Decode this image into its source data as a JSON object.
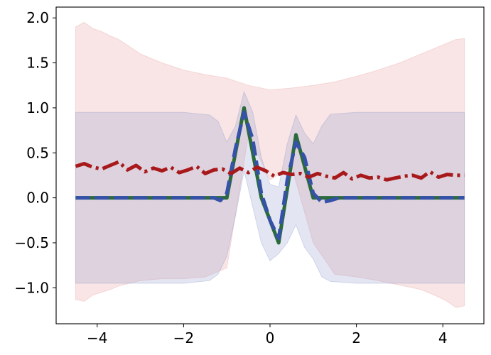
{
  "chart_data": {
    "type": "line",
    "title": "",
    "xlabel": "",
    "ylabel": "",
    "xlim": [
      -4.95,
      4.95
    ],
    "ylim": [
      -1.4,
      2.12
    ],
    "grid": false,
    "legend": "none",
    "x_ticks": [
      -4,
      -2,
      0,
      2,
      4
    ],
    "x_tick_labels": [
      "−4",
      "−2",
      "0",
      "2",
      "4"
    ],
    "y_ticks": [
      -1.0,
      -0.5,
      0.0,
      0.5,
      1.0,
      1.5,
      2.0
    ],
    "y_tick_labels": [
      "−1.0",
      "−0.5",
      "0.0",
      "0.5",
      "1.0",
      "1.5",
      "2.0"
    ],
    "bands": [
      {
        "color": "#e8a2a2",
        "opacity": 0.28,
        "x": [
          -4.5,
          -4.3,
          -4.1,
          -3.9,
          -3.7,
          -3.5,
          -3.0,
          -2.5,
          -2.0,
          -1.5,
          -1.0,
          -0.5,
          0.0,
          0.5,
          1.0,
          1.5,
          2.0,
          2.5,
          3.0,
          3.5,
          3.8,
          4.1,
          4.3,
          4.5
        ],
        "upper": [
          1.9,
          1.95,
          1.88,
          1.85,
          1.8,
          1.76,
          1.6,
          1.5,
          1.42,
          1.37,
          1.33,
          1.25,
          1.2,
          1.22,
          1.25,
          1.29,
          1.35,
          1.42,
          1.5,
          1.6,
          1.66,
          1.72,
          1.76,
          1.77
        ],
        "lower": [
          -1.13,
          -1.15,
          -1.08,
          -1.05,
          -1.02,
          -0.98,
          -0.92,
          -0.9,
          -0.9,
          -0.88,
          -0.78,
          0.7,
          0.2,
          0.35,
          -0.5,
          -0.85,
          -0.88,
          -0.92,
          -0.97,
          -1.02,
          -1.08,
          -1.15,
          -1.22,
          -1.2
        ]
      },
      {
        "color": "#8f9ccc",
        "opacity": 0.25,
        "x": [
          -4.5,
          -2.0,
          -1.4,
          -1.2,
          -1.0,
          -0.8,
          -0.6,
          -0.4,
          -0.2,
          0.0,
          0.2,
          0.4,
          0.6,
          0.8,
          1.0,
          1.2,
          1.4,
          2.0,
          4.5
        ],
        "upper": [
          0.95,
          0.95,
          0.92,
          0.85,
          0.62,
          0.8,
          1.18,
          0.95,
          0.45,
          0.15,
          0.12,
          0.6,
          0.92,
          0.72,
          0.6,
          0.8,
          0.93,
          0.95,
          0.95
        ],
        "lower": [
          -0.95,
          -0.95,
          -0.92,
          -0.85,
          -0.65,
          -0.2,
          0.3,
          -0.1,
          -0.5,
          -0.7,
          -0.62,
          -0.5,
          -0.3,
          -0.55,
          -0.68,
          -0.88,
          -0.93,
          -0.95,
          -0.95
        ]
      }
    ],
    "series": [
      {
        "color": "#2b6a3c",
        "style": "solid",
        "x": [
          -4.5,
          -1.0,
          -0.6,
          -0.2,
          0.2,
          0.6,
          1.0,
          4.5
        ],
        "y": [
          0.0,
          0.0,
          1.0,
          0.0,
          -0.5,
          0.7,
          0.0,
          0.0
        ]
      },
      {
        "color": "#3552a8",
        "style": "dashed",
        "x": [
          -4.5,
          -1.3,
          -1.15,
          -1.0,
          -0.8,
          -0.6,
          -0.4,
          -0.2,
          0.0,
          0.2,
          0.4,
          0.6,
          0.8,
          1.0,
          1.2,
          1.4,
          1.6,
          1.8,
          4.5
        ],
        "y": [
          0.0,
          0.0,
          -0.03,
          0.05,
          0.55,
          0.95,
          0.65,
          0.05,
          -0.25,
          -0.45,
          0.2,
          0.62,
          0.45,
          0.05,
          -0.05,
          -0.03,
          0.0,
          0.0,
          0.0
        ]
      },
      {
        "color": "#a8191b",
        "style": "dashdot",
        "x": [
          -4.5,
          -4.3,
          -4.1,
          -3.9,
          -3.7,
          -3.5,
          -3.3,
          -3.1,
          -2.9,
          -2.7,
          -2.5,
          -2.3,
          -2.1,
          -1.9,
          -1.7,
          -1.5,
          -1.3,
          -1.1,
          -0.9,
          -0.7,
          -0.5,
          -0.3,
          -0.1,
          0.1,
          0.3,
          0.5,
          0.7,
          0.9,
          1.1,
          1.3,
          1.5,
          1.7,
          1.9,
          2.1,
          2.3,
          2.5,
          2.7,
          2.9,
          3.1,
          3.3,
          3.5,
          3.7,
          3.9,
          4.1,
          4.3,
          4.5
        ],
        "y": [
          0.35,
          0.38,
          0.34,
          0.32,
          0.36,
          0.4,
          0.31,
          0.36,
          0.29,
          0.33,
          0.3,
          0.34,
          0.28,
          0.31,
          0.35,
          0.27,
          0.31,
          0.32,
          0.27,
          0.33,
          0.28,
          0.34,
          0.3,
          0.24,
          0.28,
          0.26,
          0.27,
          0.23,
          0.27,
          0.24,
          0.22,
          0.28,
          0.21,
          0.25,
          0.22,
          0.23,
          0.2,
          0.22,
          0.24,
          0.25,
          0.22,
          0.29,
          0.23,
          0.26,
          0.25,
          0.25
        ]
      }
    ]
  }
}
